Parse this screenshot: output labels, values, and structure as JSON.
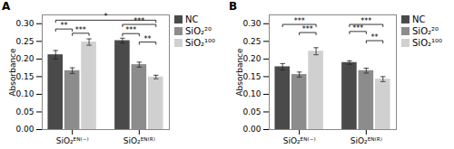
{
  "chart_data": [
    {
      "type": "bar",
      "title": "A",
      "y_label": "Absorbance",
      "categories": [
        "SiO₂ᴱᴺ⁽⁻⁾",
        "SiO₂ᴱᴺ⁽ᴿ⁾"
      ],
      "series": [
        {
          "name": "NC",
          "color": "#4a4a4a",
          "values": [
            0.212,
            0.252
          ],
          "errors": [
            0.012,
            0.007
          ]
        },
        {
          "name": "SiO₂²⁰",
          "color": "#8c8c8c",
          "values": [
            0.167,
            0.184
          ],
          "errors": [
            0.008,
            0.007
          ]
        },
        {
          "name": "SiO₂¹⁰⁰",
          "color": "#d0d0d0",
          "values": [
            0.248,
            0.149
          ],
          "errors": [
            0.009,
            0.005
          ]
        }
      ],
      "ylim": [
        0.0,
        0.325
      ],
      "yticks": [
        {
          "value": 0,
          "label": "0.00"
        },
        0.05,
        {
          "value": 0.1,
          "label": "0.10"
        },
        0.15,
        {
          "value": 0.2,
          "label": "0.20"
        },
        0.25,
        {
          "value": 0.3,
          "label": "0.30"
        }
      ],
      "legend": "upper right",
      "significance": [
        {
          "from": [
            "SiO₂ᴱᴺ⁽⁻⁾",
            "NC"
          ],
          "to": [
            "SiO₂ᴱᴺ⁽ᴿ⁾",
            "SiO₂¹⁰⁰"
          ],
          "y": 0.31,
          "label": "*"
        },
        {
          "from": [
            "SiO₂ᴱᴺ⁽⁻⁾",
            "NC"
          ],
          "to": [
            "SiO₂ᴱᴺ⁽⁻⁾",
            "SiO₂²⁰"
          ],
          "y": 0.285,
          "label": "**"
        },
        {
          "from": [
            "SiO₂ᴱᴺ⁽⁻⁾",
            "SiO₂²⁰"
          ],
          "to": [
            "SiO₂ᴱᴺ⁽⁻⁾",
            "SiO₂¹⁰⁰"
          ],
          "y": 0.273,
          "label": "***"
        },
        {
          "from": [
            "SiO₂ᴱᴺ⁽ᴿ⁾",
            "NC"
          ],
          "to": [
            "SiO₂ᴱᴺ⁽ᴿ⁾",
            "SiO₂¹⁰⁰"
          ],
          "y": 0.298,
          "label": "***"
        },
        {
          "from": [
            "SiO₂ᴱᴺ⁽ᴿ⁾",
            "NC"
          ],
          "to": [
            "SiO₂ᴱᴺ⁽ᴿ⁾",
            "SiO₂²⁰"
          ],
          "y": 0.272,
          "label": "***"
        },
        {
          "from": [
            "SiO₂ᴱᴺ⁽ᴿ⁾",
            "SiO₂²⁰"
          ],
          "to": [
            "SiO₂ᴱᴺ⁽ᴿ⁾",
            "SiO₂¹⁰⁰"
          ],
          "y": 0.248,
          "label": "**"
        }
      ]
    },
    {
      "type": "bar",
      "title": "B",
      "y_label": "Absorbance",
      "categories": [
        "SiO₂ᴱᴺ⁽⁻⁾",
        "SiO₂ᴱᴺ⁽ᴿ⁾"
      ],
      "series": [
        {
          "name": "NC",
          "color": "#4a4a4a",
          "values": [
            0.178,
            0.19
          ],
          "errors": [
            0.009,
            0.005
          ]
        },
        {
          "name": "SiO₂²⁰",
          "color": "#8c8c8c",
          "values": [
            0.156,
            0.167
          ],
          "errors": [
            0.007,
            0.007
          ]
        },
        {
          "name": "SiO₂¹⁰⁰",
          "color": "#d0d0d0",
          "values": [
            0.222,
            0.143
          ],
          "errors": [
            0.01,
            0.007
          ]
        }
      ],
      "ylim": [
        0.0,
        0.325
      ],
      "yticks": [
        {
          "value": 0,
          "label": "0.00"
        },
        0.05,
        {
          "value": 0.1,
          "label": "0.10"
        },
        0.15,
        {
          "value": 0.2,
          "label": "0.20"
        },
        0.25,
        {
          "value": 0.3,
          "label": "0.30"
        }
      ],
      "legend": "upper right",
      "significance": [
        {
          "from": [
            "SiO₂ᴱᴺ⁽⁻⁾",
            "NC"
          ],
          "to": [
            "SiO₂ᴱᴺ⁽⁻⁾",
            "SiO₂¹⁰⁰"
          ],
          "y": 0.298,
          "label": "***"
        },
        {
          "from": [
            "SiO₂ᴱᴺ⁽⁻⁾",
            "SiO₂²⁰"
          ],
          "to": [
            "SiO₂ᴱᴺ⁽⁻⁾",
            "SiO₂¹⁰⁰"
          ],
          "y": 0.275,
          "label": "***"
        },
        {
          "from": [
            "SiO₂ᴱᴺ⁽ᴿ⁾",
            "NC"
          ],
          "to": [
            "SiO₂ᴱᴺ⁽ᴿ⁾",
            "SiO₂¹⁰⁰"
          ],
          "y": 0.298,
          "label": "***"
        },
        {
          "from": [
            "SiO₂ᴱᴺ⁽ᴿ⁾",
            "NC"
          ],
          "to": [
            "SiO₂ᴱᴺ⁽ᴿ⁾",
            "SiO₂²⁰"
          ],
          "y": 0.278,
          "label": "***"
        },
        {
          "from": [
            "SiO₂ᴱᴺ⁽ᴿ⁾",
            "SiO₂²⁰"
          ],
          "to": [
            "SiO₂ᴱᴺ⁽ᴿ⁾",
            "SiO₂¹⁰⁰"
          ],
          "y": 0.252,
          "label": "**"
        }
      ]
    }
  ]
}
